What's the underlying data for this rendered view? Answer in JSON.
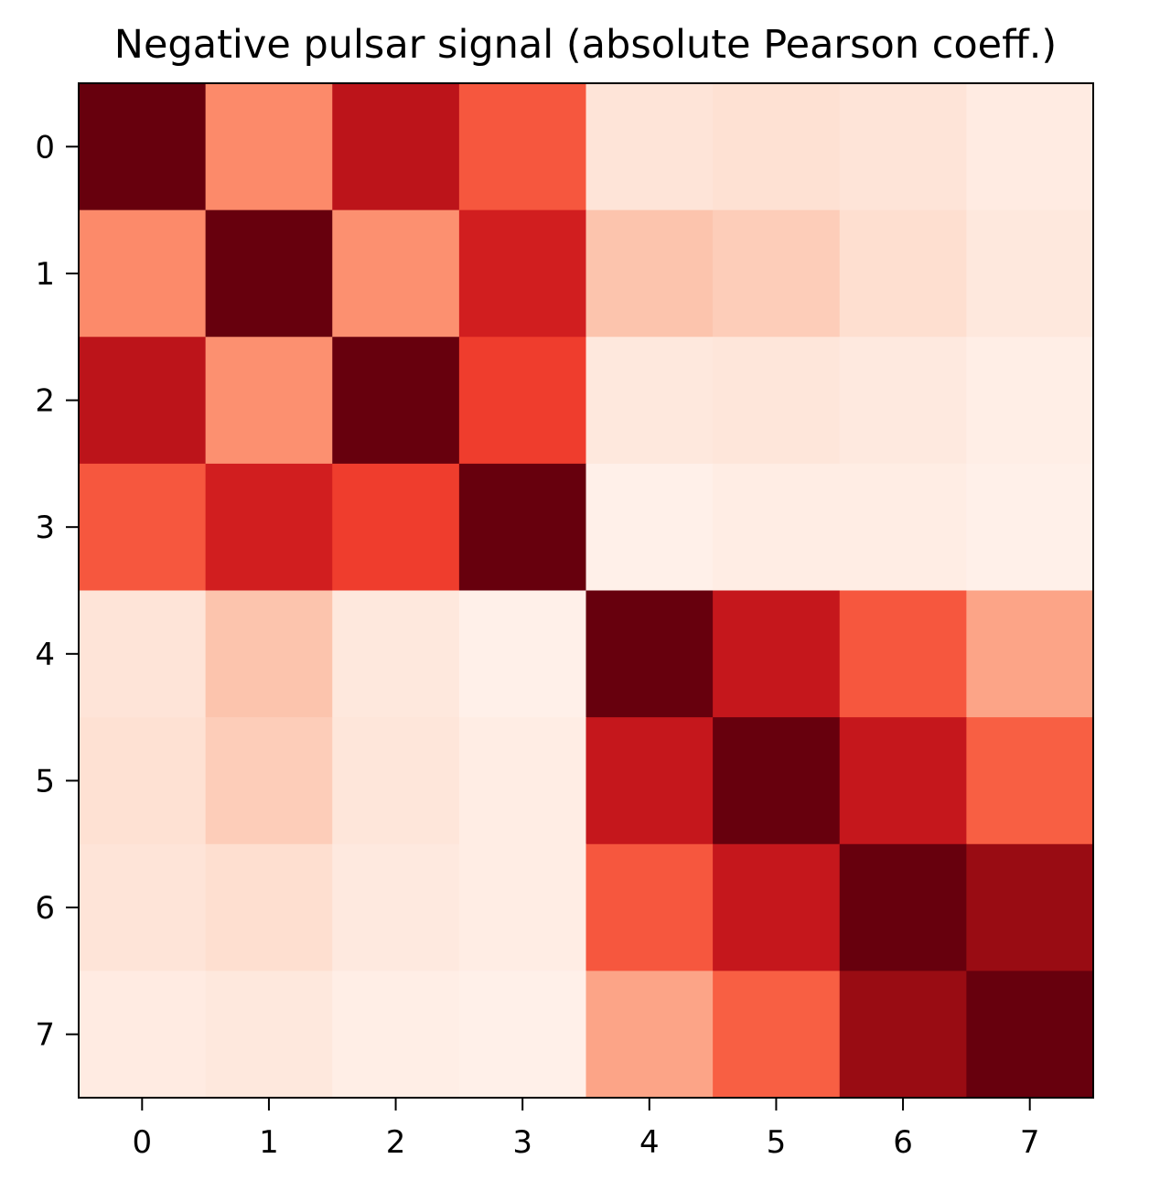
{
  "chart_data": {
    "type": "heatmap",
    "title": "Negative pulsar signal (absolute Pearson coeff.)",
    "xlabel": "",
    "ylabel": "",
    "colormap": "Reds",
    "vmin": 0.0,
    "vmax": 1.0,
    "x_ticks": [
      "0",
      "1",
      "2",
      "3",
      "4",
      "5",
      "6",
      "7"
    ],
    "y_ticks": [
      "0",
      "1",
      "2",
      "3",
      "4",
      "5",
      "6",
      "7"
    ],
    "grid": false,
    "legend": "none",
    "matrix": [
      [
        1.0,
        0.4,
        0.8,
        0.55,
        0.1,
        0.12,
        0.1,
        0.06
      ],
      [
        0.4,
        1.0,
        0.38,
        0.73,
        0.22,
        0.19,
        0.13,
        0.08
      ],
      [
        0.8,
        0.38,
        1.0,
        0.62,
        0.08,
        0.09,
        0.07,
        0.04
      ],
      [
        0.55,
        0.73,
        0.62,
        1.0,
        0.03,
        0.05,
        0.05,
        0.03
      ],
      [
        0.1,
        0.22,
        0.08,
        0.03,
        1.0,
        0.77,
        0.55,
        0.32
      ],
      [
        0.12,
        0.19,
        0.09,
        0.05,
        0.77,
        1.0,
        0.77,
        0.53
      ],
      [
        0.1,
        0.13,
        0.07,
        0.05,
        0.55,
        0.77,
        1.0,
        0.9
      ],
      [
        0.06,
        0.08,
        0.04,
        0.03,
        0.32,
        0.53,
        0.9,
        1.0
      ]
    ]
  }
}
